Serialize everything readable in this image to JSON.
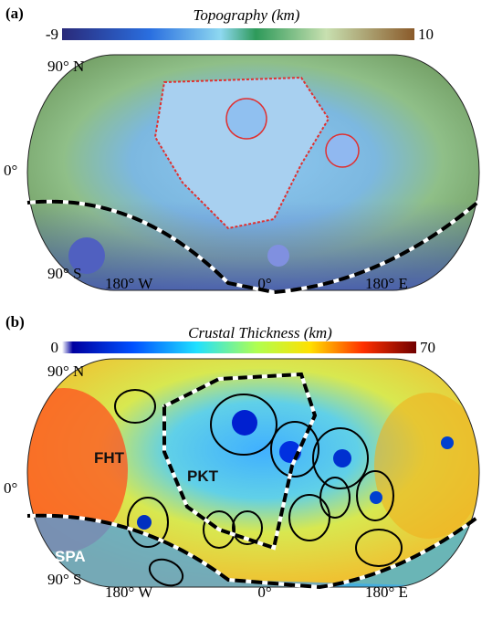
{
  "panels": [
    {
      "label": "(a)",
      "colorbar": {
        "title": "Topography (km)",
        "min": "-9",
        "max": "10"
      },
      "lat_labels": [
        "90° N",
        "0°",
        "90° S"
      ],
      "lon_labels": [
        "180° W",
        "0°",
        "180° E"
      ]
    },
    {
      "label": "(b)",
      "colorbar": {
        "title": "Crustal Thickness (km)",
        "min": "0",
        "max": "70"
      },
      "lat_labels": [
        "90° N",
        "0°",
        "90° S"
      ],
      "lon_labels": [
        "180° W",
        "0°",
        "180° E"
      ],
      "annotations": [
        "FHT",
        "PKT",
        "SPA"
      ]
    }
  ]
}
